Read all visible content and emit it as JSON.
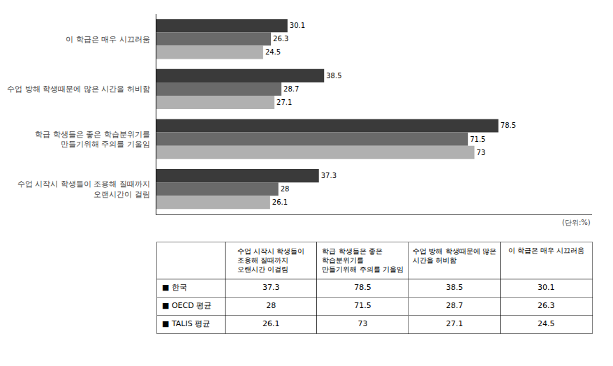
{
  "chart_data": [
    {
      "type": "bar",
      "orientation": "horizontal",
      "categories": [
        "이 학급은 매우 시끄러움",
        "수업 방해 학생때문에 많은 시간을 허비함",
        "학급 학생들은 좋은 학습분위기를\n만들기위해 주의를 기울임",
        "수업 시작시 학생들이 조용해 질때까지\n오랜시간이 걸림"
      ],
      "series": [
        {
          "color": "#3a3a3a",
          "values": [
            30.1,
            38.5,
            78.5,
            37.3
          ]
        },
        {
          "color": "#6a6a6a",
          "values": [
            26.3,
            28.7,
            71.5,
            28
          ]
        },
        {
          "color": "#b0b0b0",
          "values": [
            24.5,
            27.1,
            73,
            26.1
          ]
        }
      ],
      "xlim": [
        0,
        100
      ],
      "data_labels": true,
      "tick_labels": "y",
      "grid": false,
      "annotations": [
        {
          "text": "(단위:%)"
        }
      ]
    },
    {
      "type": "table",
      "categories": [
        "수업 시작시 학생들이\n조용해 질때까지\n오랜시간 이걸림",
        "학급 학생들은 좋은\n학습분위기를\n만들기위해 주의를 기울임",
        "수업 방해 학생때문에 많은\n시간을 허비함",
        "이 학급은 매우 시끄러움"
      ],
      "series": [
        {
          "name": "■ 한국",
          "values": [
            37.3,
            78.5,
            38.5,
            30.1
          ]
        },
        {
          "name": "■ OECD 평균",
          "values": [
            28,
            71.5,
            28.7,
            26.3
          ]
        },
        {
          "name": "■ TALIS 평균",
          "values": [
            26.1,
            73,
            27.1,
            24.5
          ]
        }
      ]
    }
  ]
}
